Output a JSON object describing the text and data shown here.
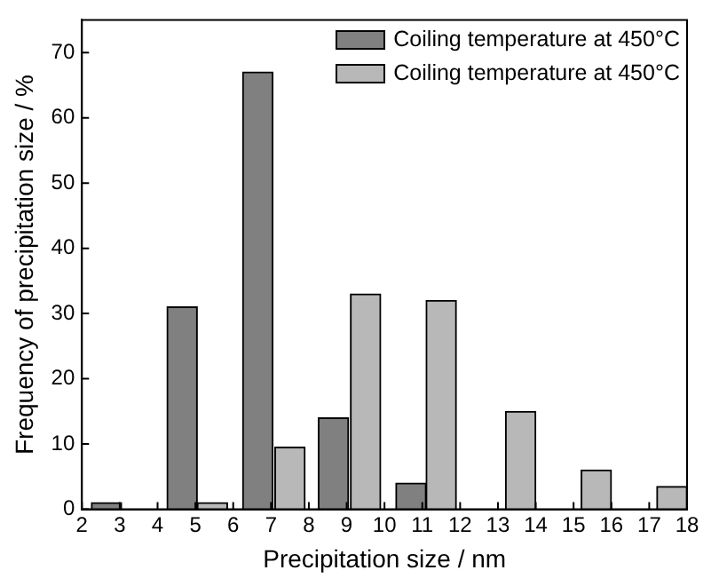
{
  "chart_data": {
    "type": "bar",
    "xlabel": "Precipitation size / nm",
    "ylabel": "Frequency of precipitation size / %",
    "xlim": [
      2,
      18
    ],
    "xticks": [
      2,
      3,
      4,
      5,
      6,
      7,
      8,
      9,
      10,
      11,
      12,
      13,
      14,
      15,
      16,
      17,
      18
    ],
    "ylim": [
      0,
      75
    ],
    "yticks": [
      0,
      10,
      20,
      30,
      40,
      50,
      60,
      70
    ],
    "grid": false,
    "legend": "top right",
    "series": [
      {
        "name": "Coiling temperature at 450°C",
        "color": "#808080",
        "x": [
          2.65,
          4.65,
          6.65,
          8.65,
          10.7
        ],
        "values": [
          1,
          31,
          67,
          14,
          4
        ]
      },
      {
        "name": "Coiling temperature at 450°C",
        "color": "#b8b8b8",
        "x": [
          5.45,
          7.5,
          9.5,
          11.5,
          13.6,
          15.6,
          17.6
        ],
        "values": [
          1,
          9.5,
          33,
          32,
          15,
          6,
          3.5
        ]
      }
    ]
  }
}
